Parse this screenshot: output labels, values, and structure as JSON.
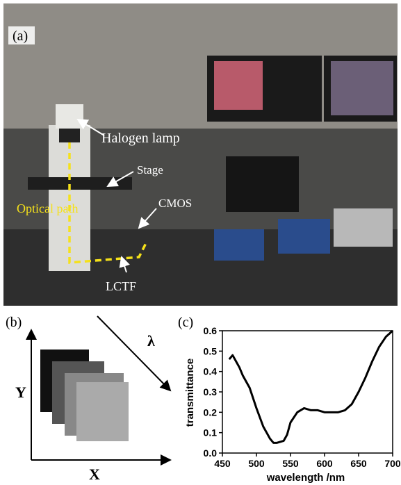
{
  "panel_a": {
    "label": "(a)",
    "annotations": [
      "Halogen lamp",
      "Stage",
      "Optical path",
      "CMOS",
      "LCTF"
    ]
  },
  "panel_b": {
    "label": "(b)",
    "y_axis": "Y",
    "x_axis": "X",
    "spectral_axis": "λ"
  },
  "chart_data": {
    "type": "line",
    "panel_label": "(c)",
    "x_label": "wavelength /nm",
    "y_label": "transmittance",
    "x": [
      460,
      465,
      470,
      475,
      480,
      490,
      500,
      510,
      520,
      525,
      530,
      540,
      545,
      550,
      560,
      570,
      580,
      590,
      600,
      610,
      620,
      630,
      640,
      650,
      660,
      670,
      680,
      690,
      700
    ],
    "values": [
      0.46,
      0.48,
      0.45,
      0.42,
      0.38,
      0.32,
      0.22,
      0.13,
      0.07,
      0.05,
      0.05,
      0.06,
      0.09,
      0.15,
      0.2,
      0.22,
      0.21,
      0.21,
      0.2,
      0.2,
      0.2,
      0.21,
      0.24,
      0.3,
      0.37,
      0.45,
      0.52,
      0.57,
      0.6
    ],
    "color": "#000000",
    "xlim": [
      450,
      700
    ],
    "xticks": [
      450,
      500,
      550,
      600,
      650,
      700
    ],
    "ylim": [
      0,
      0.6
    ],
    "yticks": [
      {
        "value": 0,
        "label": "0.0"
      },
      0.1,
      0.2,
      0.3,
      0.4,
      0.5,
      0.6
    ]
  }
}
